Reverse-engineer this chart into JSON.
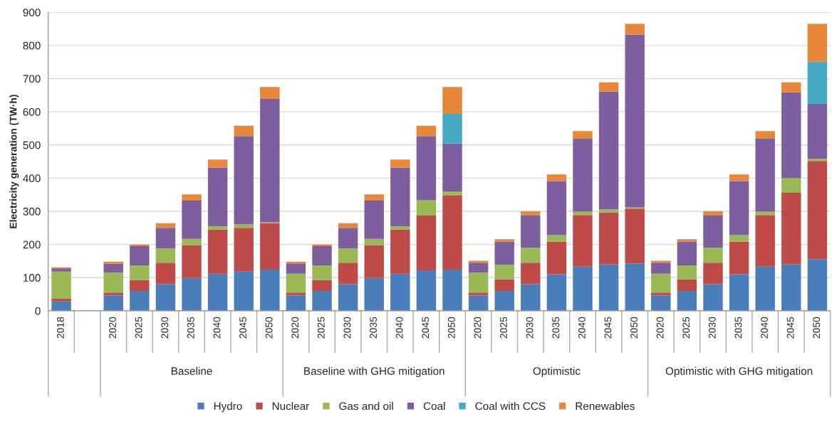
{
  "chart_data": {
    "type": "bar",
    "stacked": true,
    "ylabel": "Electricity generation (TW·h)",
    "categories": [
      "2018",
      null,
      "2020",
      "2025",
      "2030",
      "2035",
      "2040",
      "2045",
      "2050",
      "2020",
      "2025",
      "2030",
      "2035",
      "2040",
      "2045",
      "2050",
      "2020",
      "2025",
      "2030",
      "2035",
      "2040",
      "2045",
      "2050",
      "2020",
      "2025",
      "2030",
      "2035",
      "2040",
      "2045",
      "2050"
    ],
    "annotations": [
      "Baseline",
      "Baseline with GHG mitigation",
      "Optimistic",
      "Optimistic with GHG mitigation"
    ],
    "series": [
      {
        "name": "Hydro",
        "color": "#4a7ebb",
        "values": [
          28,
          null,
          46,
          60,
          80,
          99,
          112,
          118,
          124,
          46,
          60,
          80,
          99,
          112,
          122,
          124,
          46,
          60,
          80,
          110,
          133,
          140,
          143,
          46,
          60,
          80,
          110,
          133,
          140,
          156
        ]
      },
      {
        "name": "Nuclear",
        "color": "#be4b48",
        "values": [
          8,
          null,
          9,
          33,
          65,
          99,
          133,
          132,
          140,
          9,
          33,
          65,
          99,
          133,
          165,
          223,
          9,
          35,
          65,
          99,
          156,
          156,
          165,
          9,
          34,
          65,
          99,
          156,
          216,
          296
        ]
      },
      {
        "name": "Gas and oil",
        "color": "#98b954",
        "values": [
          82,
          null,
          60,
          44,
          43,
          19,
          10,
          11,
          3,
          57,
          44,
          43,
          19,
          10,
          46,
          13,
          60,
          44,
          45,
          19,
          10,
          10,
          4,
          57,
          43,
          45,
          19,
          10,
          44,
          7
        ]
      },
      {
        "name": "Coal",
        "color": "#7d5fa0",
        "values": [
          10,
          null,
          27,
          58,
          62,
          115,
          177,
          266,
          372,
          31,
          58,
          62,
          115,
          177,
          194,
          145,
          30,
          70,
          97,
          163,
          220,
          355,
          521,
          33,
          72,
          97,
          163,
          220,
          259,
          165
        ]
      },
      {
        "name": "Coal with CCS",
        "color": "#46aac5",
        "values": [
          0,
          null,
          0,
          0,
          0,
          0,
          0,
          0,
          0,
          0,
          0,
          0,
          0,
          0,
          0,
          89,
          0,
          0,
          0,
          0,
          0,
          0,
          0,
          0,
          0,
          0,
          0,
          0,
          0,
          127
        ]
      },
      {
        "name": "Renewables",
        "color": "#e8873a",
        "values": [
          3,
          null,
          6,
          5,
          14,
          19,
          24,
          31,
          36,
          5,
          5,
          14,
          19,
          24,
          31,
          81,
          6,
          7,
          13,
          20,
          23,
          28,
          32,
          6,
          7,
          13,
          20,
          23,
          30,
          114
        ]
      }
    ],
    "ylim": [
      0,
      900
    ],
    "yticks": [
      0,
      100,
      200,
      300,
      400,
      500,
      600,
      700,
      800,
      900
    ],
    "grid": "y",
    "legend": "bottom"
  }
}
